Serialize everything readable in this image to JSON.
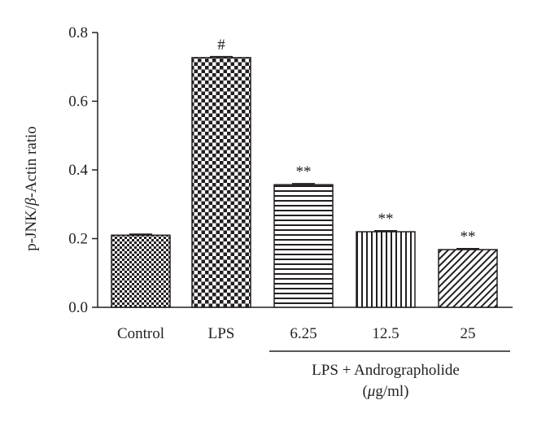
{
  "chart_data": {
    "type": "bar",
    "categories": [
      "Control",
      "LPS",
      "6.25",
      "12.5",
      "25"
    ],
    "values": [
      0.21,
      0.727,
      0.357,
      0.22,
      0.168
    ],
    "errors": [
      0.003,
      0.003,
      0.003,
      0.003,
      0.003
    ],
    "annotations": [
      "",
      "#",
      "**",
      "**",
      "**"
    ],
    "patterns": [
      "checker-fine",
      "checker-coarse",
      "horizontal-lines",
      "vertical-lines",
      "diagonal-lines"
    ],
    "ylabel_parts": [
      "p-JNK/",
      "β",
      "-Actin ratio"
    ],
    "yticks": [
      "0.0",
      "0.2",
      "0.4",
      "0.6",
      "0.8"
    ],
    "ylim": [
      0,
      0.8
    ],
    "group_label_line1": "LPS + Andrographolide",
    "group_label_line2_open": "(",
    "group_label_line2_unit_italic": "μ",
    "group_label_line2_rest": "g/ml)",
    "group_span": [
      "6.25",
      "25"
    ],
    "colors": {
      "ink": "#231f20",
      "background": "#ffffff"
    }
  }
}
